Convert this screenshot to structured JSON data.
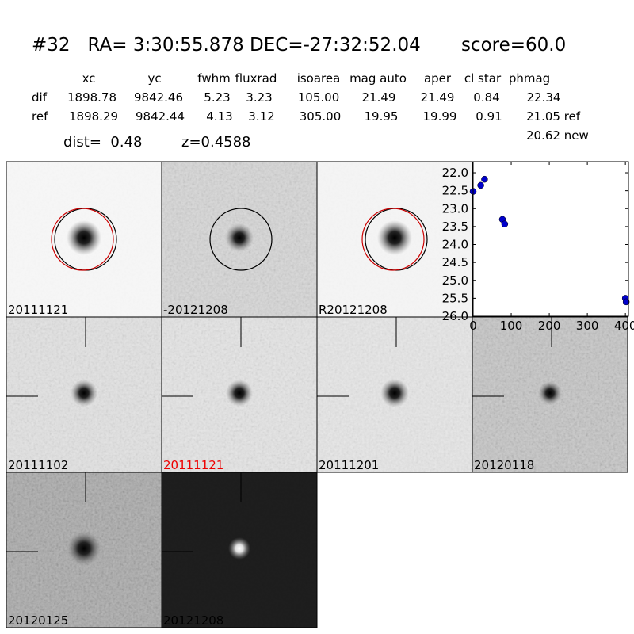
{
  "header": {
    "title": "#32   RA= 3:30:55.878 DEC=-27:32:52.04       score=60.0",
    "dist": "dist=  0.48",
    "z": "z=0.4588"
  },
  "table": {
    "columns": [
      "xc",
      "yc",
      "fwhm",
      "fluxrad",
      "isoarea",
      "mag auto",
      "aper",
      "cl star",
      "phmag"
    ],
    "rows": [
      [
        "dif",
        "1898.78",
        "9842.46",
        "5.23",
        "3.23",
        "105.00",
        "21.49",
        "21.49",
        "0.84",
        "22.34"
      ],
      [
        "ref",
        "1898.29",
        "9842.44",
        "4.13",
        "3.12",
        "305.00",
        "19.95",
        "19.99",
        "0.91",
        "21.05 ref"
      ]
    ],
    "extra": "20.62 new"
  },
  "stamps": [
    "20111121",
    "-20121208",
    "R20121208",
    "20111102",
    "20111121",
    "20111201",
    "20120118",
    "20120125",
    "20121208"
  ],
  "chart_data": {
    "type": "scatter",
    "color": "#0000cc",
    "x": [
      0,
      20,
      30,
      77,
      83,
      400,
      402
    ],
    "values": [
      22.52,
      22.35,
      22.18,
      23.3,
      23.43,
      25.5,
      25.6
    ],
    "xlim": [
      0,
      408
    ],
    "ylim": [
      26,
      21.69
    ],
    "xticks": [
      0,
      100,
      200,
      300,
      400
    ],
    "yticks": [
      {
        "value": 22,
        "label": "22.0"
      },
      {
        "value": 22.5,
        "label": "22.5"
      },
      {
        "value": 23,
        "label": "23.0"
      },
      {
        "value": 23.5,
        "label": "23.5"
      },
      {
        "value": 24,
        "label": "24.0"
      },
      {
        "value": 24.5,
        "label": "24.5"
      },
      {
        "value": 25,
        "label": "25.0"
      },
      {
        "value": 25.5,
        "label": "25.5"
      },
      {
        "value": 26,
        "label": "26.0"
      }
    ]
  }
}
